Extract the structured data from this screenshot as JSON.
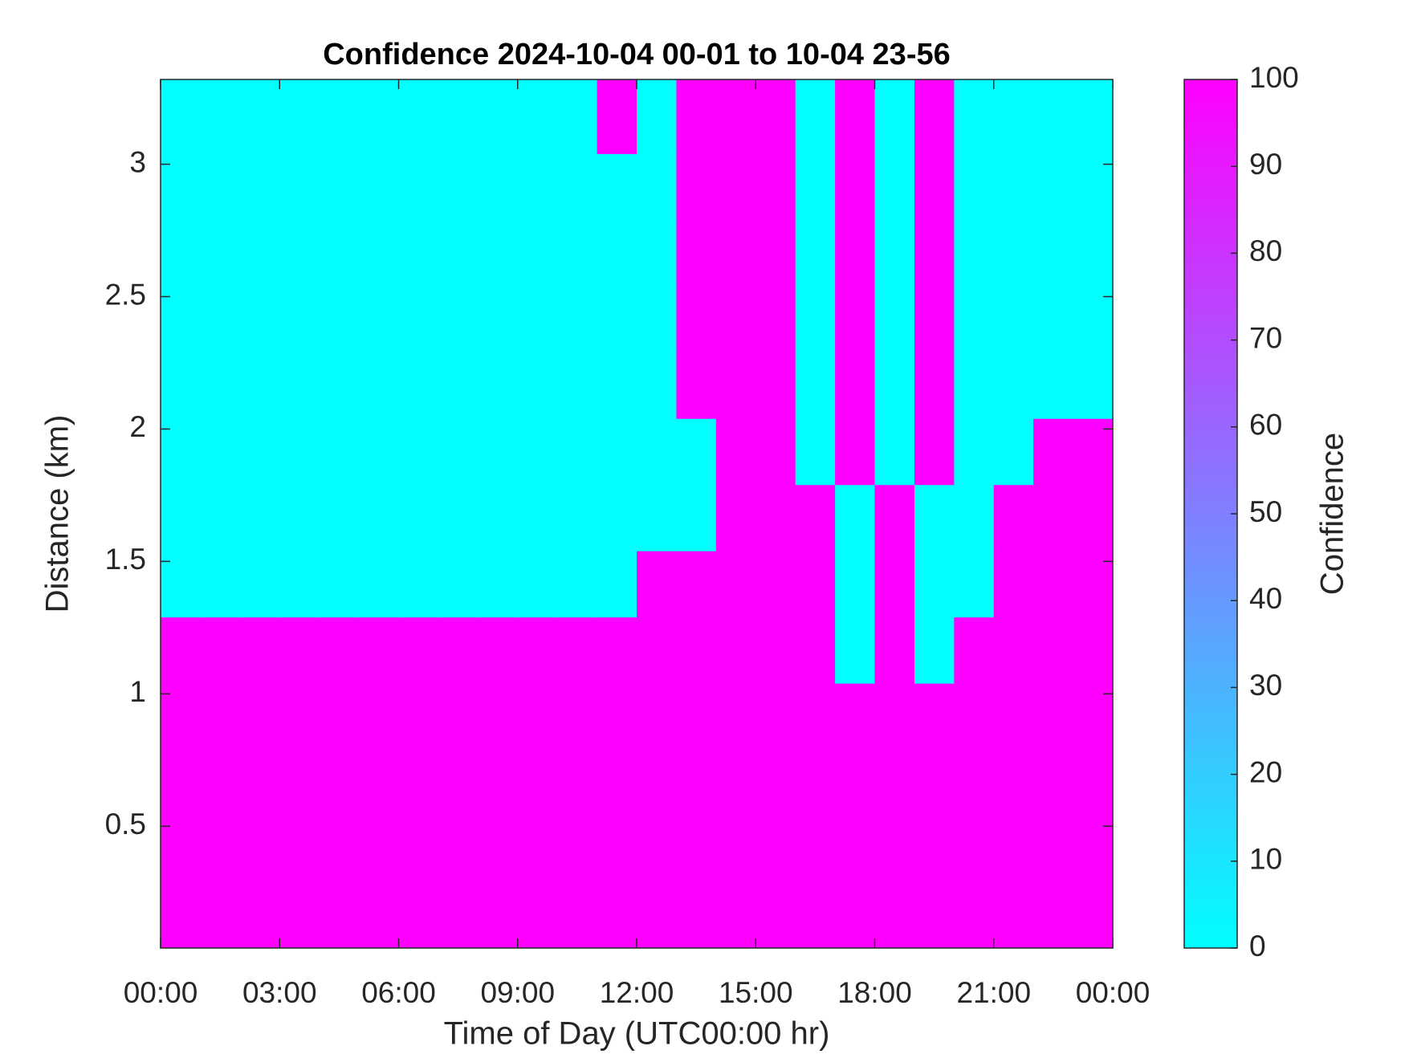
{
  "chart_data": {
    "type": "heatmap",
    "title": "Confidence 2024-10-04 00-01 to 10-04 23-56",
    "x_label": "Time of Day (UTC00:00 hr)",
    "y_label": "Distance (km)",
    "colorbar_label": "Confidence",
    "colormap": [
      "#00ffff",
      "#ff00ff"
    ],
    "clim": [
      0,
      100
    ],
    "cticks": [
      0,
      10,
      20,
      30,
      40,
      50,
      60,
      70,
      80,
      90,
      100
    ],
    "xlim": [
      0,
      24
    ],
    "xticks": [
      {
        "value": 0,
        "label": "00:00"
      },
      {
        "value": 3,
        "label": "03:00"
      },
      {
        "value": 6,
        "label": "06:00"
      },
      {
        "value": 9,
        "label": "09:00"
      },
      {
        "value": 12,
        "label": "12:00"
      },
      {
        "value": 15,
        "label": "15:00"
      },
      {
        "value": 18,
        "label": "18:00"
      },
      {
        "value": 21,
        "label": "21:00"
      },
      {
        "value": 24,
        "label": "00:00"
      }
    ],
    "ylim": [
      0.04,
      3.32
    ],
    "yticks": [
      0.5,
      1,
      1.5,
      2,
      2.5,
      3
    ],
    "x": [
      0.5,
      1.5,
      2.5,
      3.5,
      4.5,
      5.5,
      6.5,
      7.5,
      8.5,
      9.5,
      10.5,
      11.5,
      12.5,
      13.5,
      14.5,
      15.5,
      16.5,
      17.5,
      18.5,
      19.5,
      20.5,
      21.5,
      22.5,
      23.5
    ],
    "y": [
      0.165,
      0.415,
      0.665,
      0.915,
      1.165,
      1.415,
      1.665,
      1.915,
      2.165,
      2.415,
      2.665,
      2.915,
      3.165,
      3.415
    ],
    "z": [
      [
        100,
        100,
        100,
        100,
        100,
        100,
        100,
        100,
        100,
        100,
        100,
        100,
        100,
        100,
        100,
        100,
        100,
        100,
        100,
        100,
        100,
        100,
        100,
        100
      ],
      [
        100,
        100,
        100,
        100,
        100,
        100,
        100,
        100,
        100,
        100,
        100,
        100,
        100,
        100,
        100,
        100,
        100,
        100,
        100,
        100,
        100,
        100,
        100,
        100
      ],
      [
        100,
        100,
        100,
        100,
        100,
        100,
        100,
        100,
        100,
        100,
        100,
        100,
        100,
        100,
        100,
        100,
        100,
        100,
        100,
        100,
        100,
        100,
        100,
        100
      ],
      [
        100,
        100,
        100,
        100,
        100,
        100,
        100,
        100,
        100,
        100,
        100,
        100,
        100,
        100,
        100,
        100,
        100,
        100,
        100,
        100,
        100,
        100,
        100,
        100
      ],
      [
        100,
        100,
        100,
        100,
        100,
        100,
        100,
        100,
        100,
        100,
        100,
        100,
        100,
        100,
        100,
        100,
        100,
        0,
        100,
        0,
        100,
        100,
        100,
        100
      ],
      [
        0,
        0,
        0,
        0,
        0,
        0,
        0,
        0,
        0,
        0,
        0,
        0,
        100,
        100,
        100,
        100,
        100,
        0,
        100,
        0,
        0,
        100,
        100,
        100
      ],
      [
        0,
        0,
        0,
        0,
        0,
        0,
        0,
        0,
        0,
        0,
        0,
        0,
        0,
        0,
        100,
        100,
        100,
        0,
        100,
        0,
        0,
        100,
        100,
        100
      ],
      [
        0,
        0,
        0,
        0,
        0,
        0,
        0,
        0,
        0,
        0,
        0,
        0,
        0,
        0,
        100,
        100,
        0,
        100,
        0,
        100,
        0,
        0,
        100,
        100
      ],
      [
        0,
        0,
        0,
        0,
        0,
        0,
        0,
        0,
        0,
        0,
        0,
        0,
        0,
        100,
        100,
        100,
        0,
        100,
        0,
        100,
        0,
        0,
        0,
        0
      ],
      [
        0,
        0,
        0,
        0,
        0,
        0,
        0,
        0,
        0,
        0,
        0,
        0,
        0,
        100,
        100,
        100,
        0,
        100,
        0,
        100,
        0,
        0,
        0,
        0
      ],
      [
        0,
        0,
        0,
        0,
        0,
        0,
        0,
        0,
        0,
        0,
        0,
        0,
        0,
        100,
        100,
        100,
        0,
        100,
        0,
        100,
        0,
        0,
        0,
        0
      ],
      [
        0,
        0,
        0,
        0,
        0,
        0,
        0,
        0,
        0,
        0,
        0,
        0,
        0,
        100,
        100,
        100,
        0,
        100,
        0,
        100,
        0,
        0,
        0,
        0
      ],
      [
        0,
        0,
        0,
        0,
        0,
        0,
        0,
        0,
        0,
        0,
        0,
        100,
        0,
        100,
        100,
        100,
        0,
        100,
        0,
        100,
        0,
        0,
        0,
        0
      ],
      [
        0,
        0,
        0,
        0,
        0,
        0,
        0,
        0,
        0,
        0,
        0,
        100,
        0,
        100,
        100,
        100,
        0,
        100,
        0,
        100,
        0,
        0,
        0,
        0
      ]
    ]
  }
}
